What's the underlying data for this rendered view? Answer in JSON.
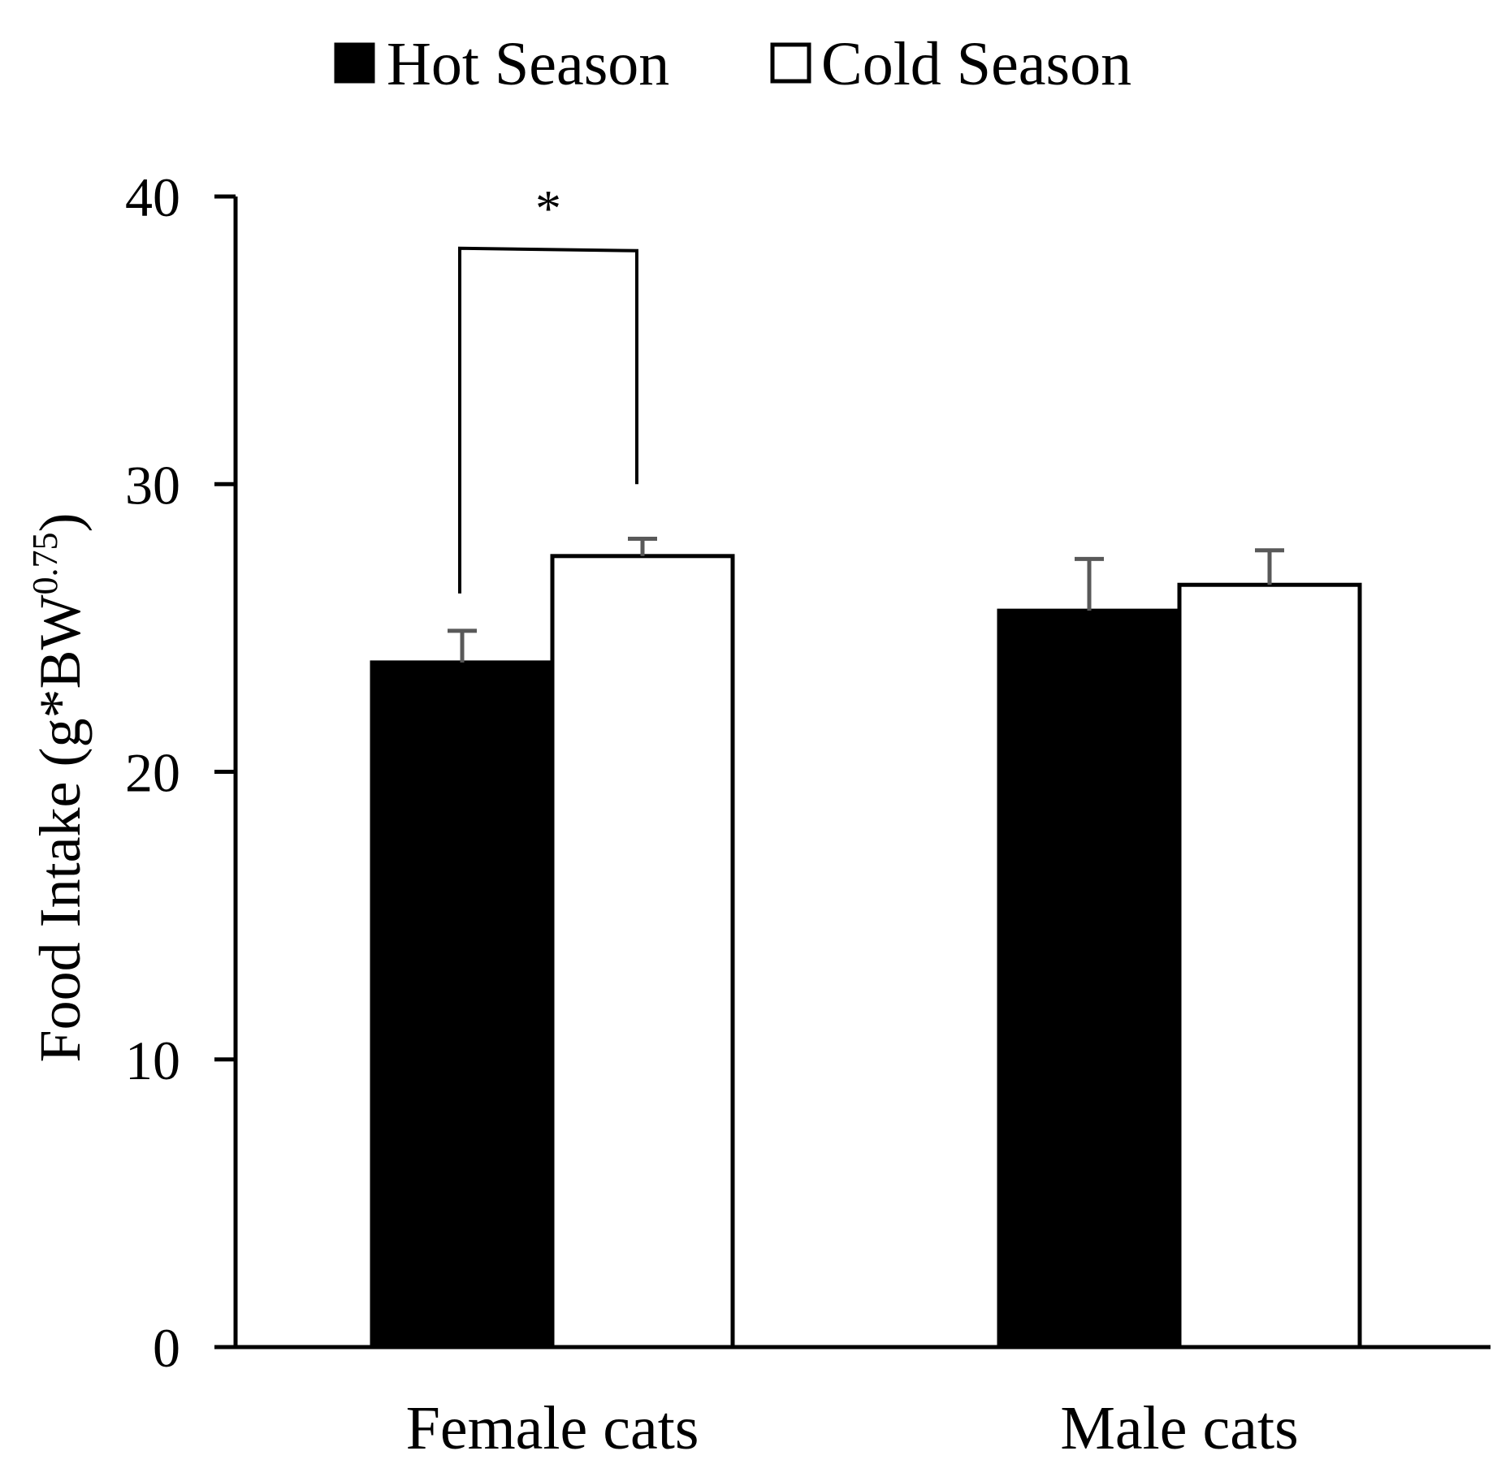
{
  "chart_data": {
    "type": "bar",
    "title": "",
    "categories": [
      "Female cats",
      "Male cats"
    ],
    "series": [
      {
        "name": "Hot Season",
        "values": [
          23.8,
          25.6
        ],
        "errors": [
          1.1,
          1.8
        ],
        "fill": "#000000"
      },
      {
        "name": "Cold Season",
        "values": [
          27.5,
          26.5
        ],
        "errors": [
          0.6,
          1.2
        ],
        "fill": "#ffffff"
      }
    ],
    "ylabel": {
      "main": "Food Intake (g*BW",
      "sup": "0.75",
      "close": ")"
    },
    "ylim": [
      0,
      40
    ],
    "yticks": [
      0,
      10,
      20,
      30,
      40
    ],
    "legend": {
      "position": "top-center"
    },
    "grid": false,
    "annotations": [
      {
        "text": "*",
        "category": "Female cats",
        "between": [
          "Hot Season",
          "Cold Season"
        ],
        "bracket_top": 38.2,
        "left_foot": 26.2,
        "right_foot": 30.0
      }
    ],
    "colors": {
      "axis": "#000000",
      "error_bar": "#595959"
    }
  }
}
